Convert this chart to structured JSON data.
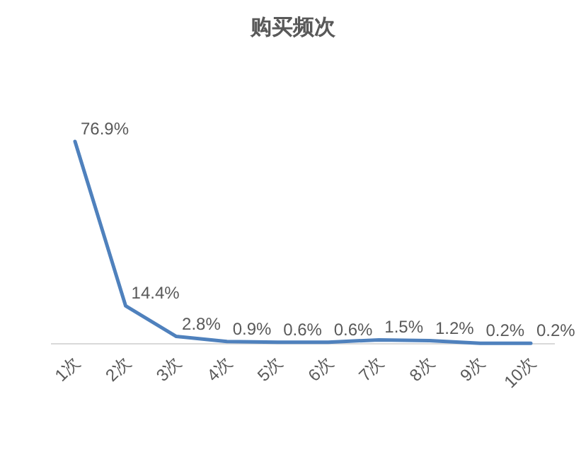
{
  "chart_data": {
    "type": "line",
    "title": "购买频次",
    "categories": [
      "1次",
      "2次",
      "3次",
      "4次",
      "5次",
      "6次",
      "7次",
      "8次",
      "9次",
      "10次"
    ],
    "series": [
      {
        "color": "#4f81bd",
        "values": [
          76.9,
          14.4,
          2.8,
          0.9,
          0.6,
          0.6,
          1.5,
          1.2,
          0.2,
          0.2
        ],
        "value_labels": [
          "76.9%",
          "14.4%",
          "2.8%",
          "0.9%",
          "0.6%",
          "0.6%",
          "1.5%",
          "1.2%",
          "0.2%",
          "0.2%"
        ]
      }
    ],
    "marker": "none",
    "line_style": "solid"
  }
}
